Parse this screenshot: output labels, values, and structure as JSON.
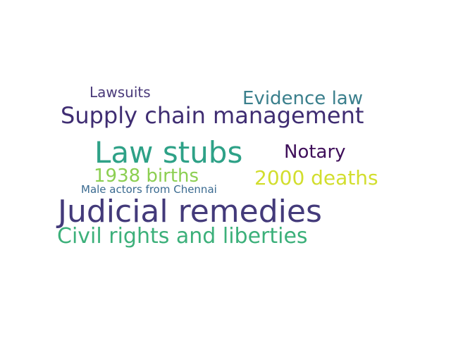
{
  "word_cloud": {
    "words": [
      {
        "key": "lawsuits",
        "text": "Lawsuits",
        "color": "#4a3a7a"
      },
      {
        "key": "evidence",
        "text": "Evidence law",
        "color": "#3a7f8c"
      },
      {
        "key": "supply",
        "text": "Supply chain management",
        "color": "#3f2d72"
      },
      {
        "key": "lawstubs",
        "text": "Law stubs",
        "color": "#2ea187"
      },
      {
        "key": "notary",
        "text": "Notary",
        "color": "#3f0f5a"
      },
      {
        "key": "births1938",
        "text": "1938 births",
        "color": "#8ccf52"
      },
      {
        "key": "deaths2000",
        "text": "2000 deaths",
        "color": "#d2de2e"
      },
      {
        "key": "maleactors",
        "text": "Male actors from Chennai",
        "color": "#3a6a90"
      },
      {
        "key": "judicial",
        "text": "Judicial remedies",
        "color": "#433a7a"
      },
      {
        "key": "civil",
        "text": "Civil rights and liberties",
        "color": "#3cb07a"
      }
    ]
  }
}
